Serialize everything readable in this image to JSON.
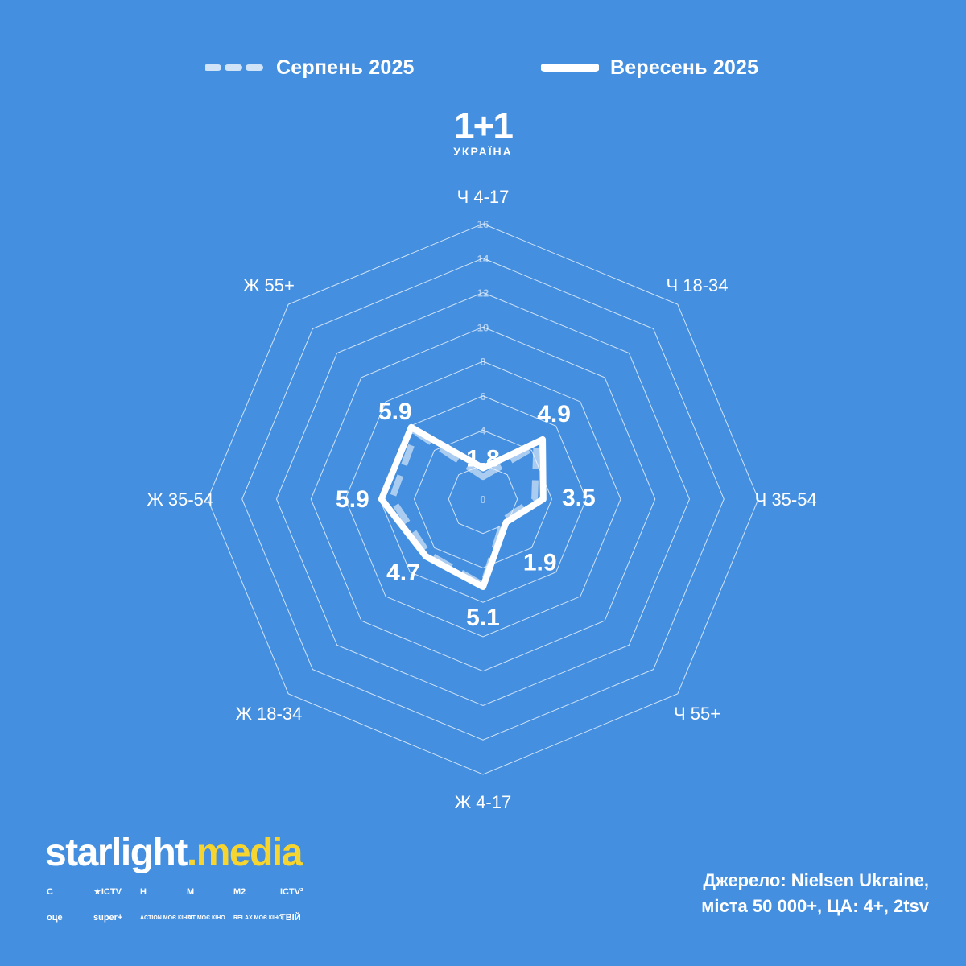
{
  "legend": {
    "series1": "Серпень 2025",
    "series2": "Вересень 2025"
  },
  "logo": {
    "main": "1+1",
    "sub": "УКРАЇНА"
  },
  "chart_data": {
    "type": "radar",
    "categories": [
      "Ч 4-17",
      "Ч 18-34",
      "Ч 35-54",
      "Ч 55+",
      "Ж 4-17",
      "Ж 18-34",
      "Ж 35-54",
      "Ж 55+"
    ],
    "rlim": [
      0,
      16
    ],
    "rticks": [
      0,
      4,
      6,
      8,
      10,
      12,
      14,
      16
    ],
    "rtick_labels": [
      "0",
      "4",
      "6",
      "8",
      "10",
      "12",
      "14",
      "16"
    ],
    "series": [
      {
        "name": "Серпень 2025",
        "style": "dashed",
        "values": [
          1.3,
          4.4,
          3.0,
          1.7,
          5.0,
          4.5,
          5.3,
          5.5
        ]
      },
      {
        "name": "Вересень 2025",
        "style": "solid",
        "values": [
          1.8,
          4.9,
          3.5,
          1.9,
          5.1,
          4.7,
          5.9,
          5.9
        ],
        "labels": [
          "1.8",
          "4.9",
          "3.5",
          "1.9",
          "5.1",
          "4.7",
          "5.9",
          "5.9"
        ]
      }
    ],
    "grid": true,
    "legend_position": "top",
    "colors": {
      "background": "#448FDF",
      "lines": "#ffffff"
    }
  },
  "brand": {
    "name_a": "starlight",
    "dot": ".",
    "name_b": "media"
  },
  "channels": {
    "row1": [
      "С",
      "★ICTV",
      "Н",
      "М",
      "М2",
      "ICTV²"
    ],
    "row2": [
      "оце",
      "super+",
      "ACTION МОЄ КІНО",
      "ХІТ МОЄ КІНО",
      "RELAX МОЄ КІНО",
      "ТВІЙ"
    ]
  },
  "source": {
    "line1": "Джерело: Nielsen Ukraine,",
    "line2": "міста 50 000+, ЦА: 4+, 2tsv"
  }
}
